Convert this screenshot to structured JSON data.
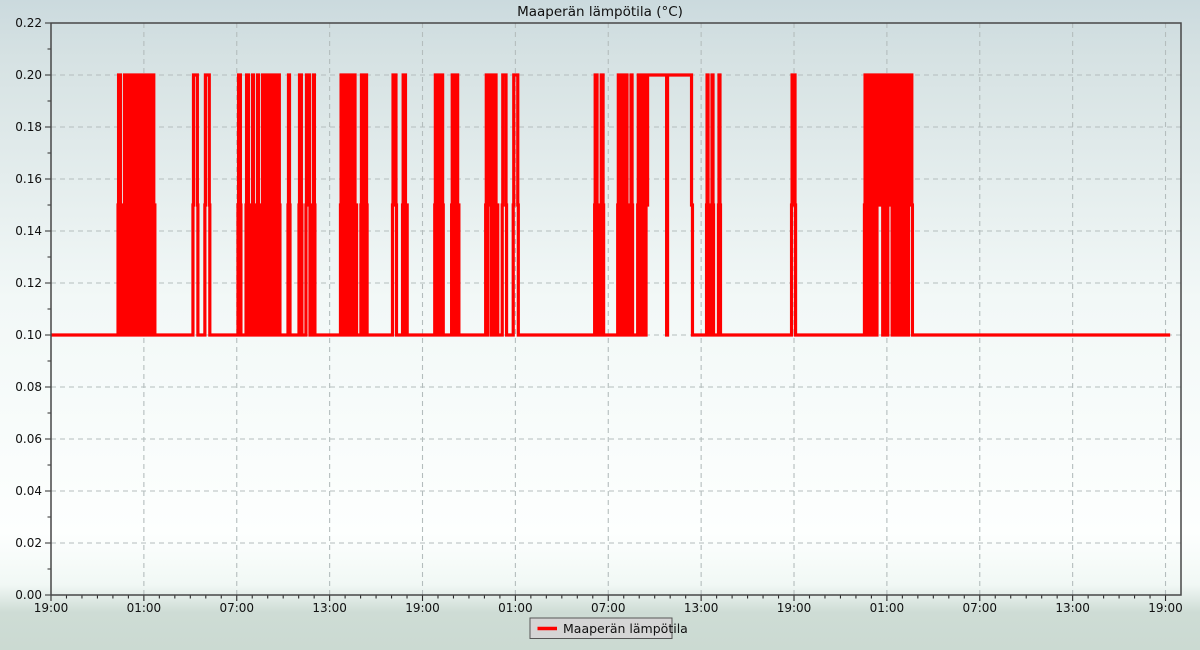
{
  "title": "Maaperän lämpötila (°C)",
  "legend": {
    "label": "Maaperän lämpötila"
  },
  "chart_style": {
    "series_color": "#ff0000",
    "grid_color": "#b4bdbd",
    "border_color": "#474747",
    "tick_color": "#2a2a2a",
    "text_color": "#101010",
    "legend_bg": "#d5d5d5",
    "legend_border": "#565656",
    "bg_gradient": [
      [
        "0%",
        "#cbdade"
      ],
      [
        "9%",
        "#d6e2e3"
      ],
      [
        "46%",
        "#f2f8f7"
      ],
      [
        "82%",
        "#fdfffe"
      ],
      [
        "90%",
        "#f1f8f5"
      ],
      [
        "94.2%",
        "#cedcd5"
      ],
      [
        "100%",
        "#cbdad2"
      ]
    ]
  },
  "chart_data": {
    "type": "line",
    "interpolation": "step",
    "title": "Maaperän lämpötila (°C)",
    "xlabel": "",
    "ylabel": "",
    "series_name": "Maaperän lämpötila",
    "ylim": [
      0.0,
      0.22
    ],
    "y_major_step": 0.02,
    "y_minor_step": 0.01,
    "y_tick_labels": [
      "0.00",
      "0.02",
      "0.04",
      "0.06",
      "0.08",
      "0.10",
      "0.12",
      "0.14",
      "0.16",
      "0.18",
      "0.20",
      "0.22"
    ],
    "xlim_hours": [
      0,
      73
    ],
    "x_major_step_hours": 6,
    "x_minor_step_hours": 1,
    "x_tick_labels": [
      "19:00",
      "01:00",
      "07:00",
      "13:00",
      "19:00",
      "01:00",
      "07:00",
      "13:00",
      "19:00",
      "01:00",
      "07:00",
      "13:00",
      "19:00"
    ],
    "grid": "dashed",
    "legend_position": "bottom-center",
    "value_levels": [
      0.1,
      0.15,
      0.2
    ],
    "data_end_hour": 72.3,
    "segment_codes": {
      "b": "baseline at 0.10 °C",
      "p": "single pulse to 0.20 °C with brief 0.15 shoulders",
      "u": "rapid oscillation 0.10–0.20 °C (renders as solid band)",
      "h": "hold at given value"
    },
    "segments": [
      [
        "b",
        0,
        4.33
      ],
      [
        "p",
        4.33,
        4.52
      ],
      [
        "b",
        4.52,
        4.71
      ],
      [
        "u",
        4.71,
        5.49
      ],
      [
        "h",
        5.49,
        5.55,
        0.15
      ],
      [
        "u",
        5.55,
        6.71
      ],
      [
        "b",
        6.71,
        9.17
      ],
      [
        "p",
        9.17,
        9.49
      ],
      [
        "b",
        9.49,
        9.94
      ],
      [
        "p",
        9.94,
        10.26
      ],
      [
        "b",
        10.26,
        12.08
      ],
      [
        "p",
        12.08,
        12.27
      ],
      [
        "b",
        12.27,
        12.6
      ],
      [
        "p",
        12.6,
        12.79
      ],
      [
        "b",
        12.79,
        12.99
      ],
      [
        "p",
        12.99,
        13.11
      ],
      [
        "b",
        13.11,
        13.31
      ],
      [
        "p",
        13.31,
        13.44
      ],
      [
        "b",
        13.44,
        13.63
      ],
      [
        "u",
        13.63,
        14.28
      ],
      [
        "b",
        14.28,
        14.34
      ],
      [
        "u",
        14.34,
        14.79
      ],
      [
        "b",
        14.79,
        15.31
      ],
      [
        "p",
        15.31,
        15.44
      ],
      [
        "b",
        15.44,
        16.02
      ],
      [
        "p",
        16.02,
        16.21
      ],
      [
        "b",
        16.21,
        16.47
      ],
      [
        "p",
        16.47,
        16.73
      ],
      [
        "b",
        16.73,
        16.92
      ],
      [
        "p",
        16.92,
        17.05
      ],
      [
        "b",
        17.05,
        18.7
      ],
      [
        "u",
        18.7,
        19.02
      ],
      [
        "b",
        19.02,
        19.1
      ],
      [
        "u",
        19.1,
        19.49
      ],
      [
        "h",
        19.49,
        19.55,
        0.15
      ],
      [
        "u",
        19.55,
        19.74
      ],
      [
        "b",
        19.74,
        20.02
      ],
      [
        "p",
        20.02,
        20.17
      ],
      [
        "b",
        20.17,
        20.23
      ],
      [
        "p",
        20.23,
        20.42
      ],
      [
        "b",
        20.42,
        22.06
      ],
      [
        "p",
        22.06,
        22.32
      ],
      [
        "b",
        22.32,
        22.71
      ],
      [
        "u",
        22.71,
        23.01
      ],
      [
        "b",
        23.01,
        24.79
      ],
      [
        "u",
        24.79,
        25.34
      ],
      [
        "b",
        25.34,
        25.88
      ],
      [
        "u",
        25.88,
        26.35
      ],
      [
        "b",
        26.35,
        28.08
      ],
      [
        "u",
        28.08,
        28.3
      ],
      [
        "h",
        28.3,
        28.36,
        0.15
      ],
      [
        "u",
        28.36,
        28.86
      ],
      [
        "b",
        28.86,
        29.15
      ],
      [
        "p",
        29.15,
        29.43
      ],
      [
        "b",
        29.43,
        29.86
      ],
      [
        "p",
        29.86,
        30.19
      ],
      [
        "b",
        30.19,
        35.12
      ],
      [
        "p",
        35.12,
        35.31
      ],
      [
        "b",
        35.31,
        35.51
      ],
      [
        "p",
        35.51,
        35.7
      ],
      [
        "b",
        35.7,
        36.61
      ],
      [
        "u",
        36.61,
        37.25
      ],
      [
        "b",
        37.25,
        37.44
      ],
      [
        "p",
        37.44,
        37.57
      ],
      [
        "b",
        37.57,
        37.9
      ],
      [
        "u",
        37.9,
        38.54
      ],
      [
        "h",
        38.54,
        39.77,
        0.2
      ],
      [
        "b",
        39.77,
        39.83
      ],
      [
        "h",
        39.83,
        41.38,
        0.2
      ],
      [
        "h",
        41.38,
        41.44,
        0.15
      ],
      [
        "b",
        41.44,
        42.35
      ],
      [
        "p",
        42.35,
        42.48
      ],
      [
        "b",
        42.48,
        42.67
      ],
      [
        "p",
        42.67,
        42.8
      ],
      [
        "b",
        42.8,
        43.12
      ],
      [
        "p",
        43.12,
        43.25
      ],
      [
        "b",
        43.25,
        47.84
      ],
      [
        "p",
        47.84,
        48.1
      ],
      [
        "b",
        48.1,
        52.55
      ],
      [
        "u",
        52.55,
        53.4
      ],
      [
        "h",
        53.4,
        53.46,
        0.15
      ],
      [
        "u",
        53.46,
        53.58
      ],
      [
        "h",
        53.58,
        53.64,
        0.15
      ],
      [
        "u",
        53.64,
        54.1
      ],
      [
        "h",
        54.1,
        54.25,
        0.2
      ],
      [
        "u",
        54.25,
        55.45
      ],
      [
        "h",
        55.45,
        55.52,
        0.15
      ],
      [
        "u",
        55.52,
        55.65
      ],
      [
        "b",
        55.65,
        72.3
      ]
    ]
  }
}
